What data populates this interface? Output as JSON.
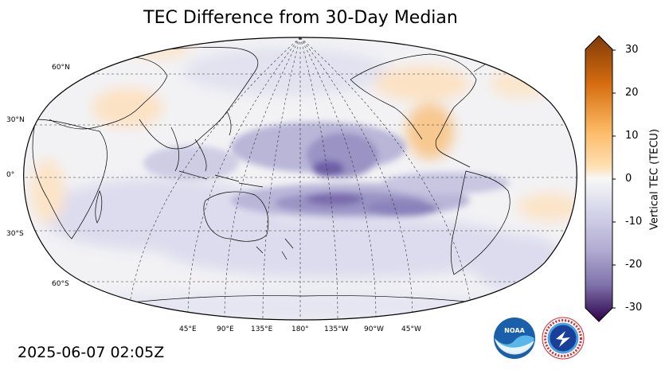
{
  "title": "TEC Difference from 30-Day Median",
  "timestamp": "2025-06-07 02:05Z",
  "map": {
    "projection": "Robinson (central longitude 180°)",
    "lat_labels": [
      "60°N",
      "30°N",
      "0°",
      "30°S",
      "60°S"
    ],
    "lon_labels": [
      "45°E",
      "90°E",
      "135°E",
      "180°",
      "135°W",
      "90°W",
      "45°W"
    ]
  },
  "colorbar": {
    "label": "Vertical TEC (TECU)",
    "ticks": [
      "30",
      "20",
      "10",
      "0",
      "-10",
      "-20",
      "-30"
    ],
    "range": [
      -30,
      30
    ],
    "colors": {
      "max": "#7f3b08",
      "high": "#e08214",
      "low_positive": "#fee0b6",
      "zero": "#f7f7f7",
      "low_negative": "#d8daeb",
      "mid_negative": "#8073ac",
      "min": "#2d004b"
    }
  },
  "logos": {
    "noaa": "NOAA",
    "nws_ring": "NATIONAL WEATHER SERVICE"
  }
}
